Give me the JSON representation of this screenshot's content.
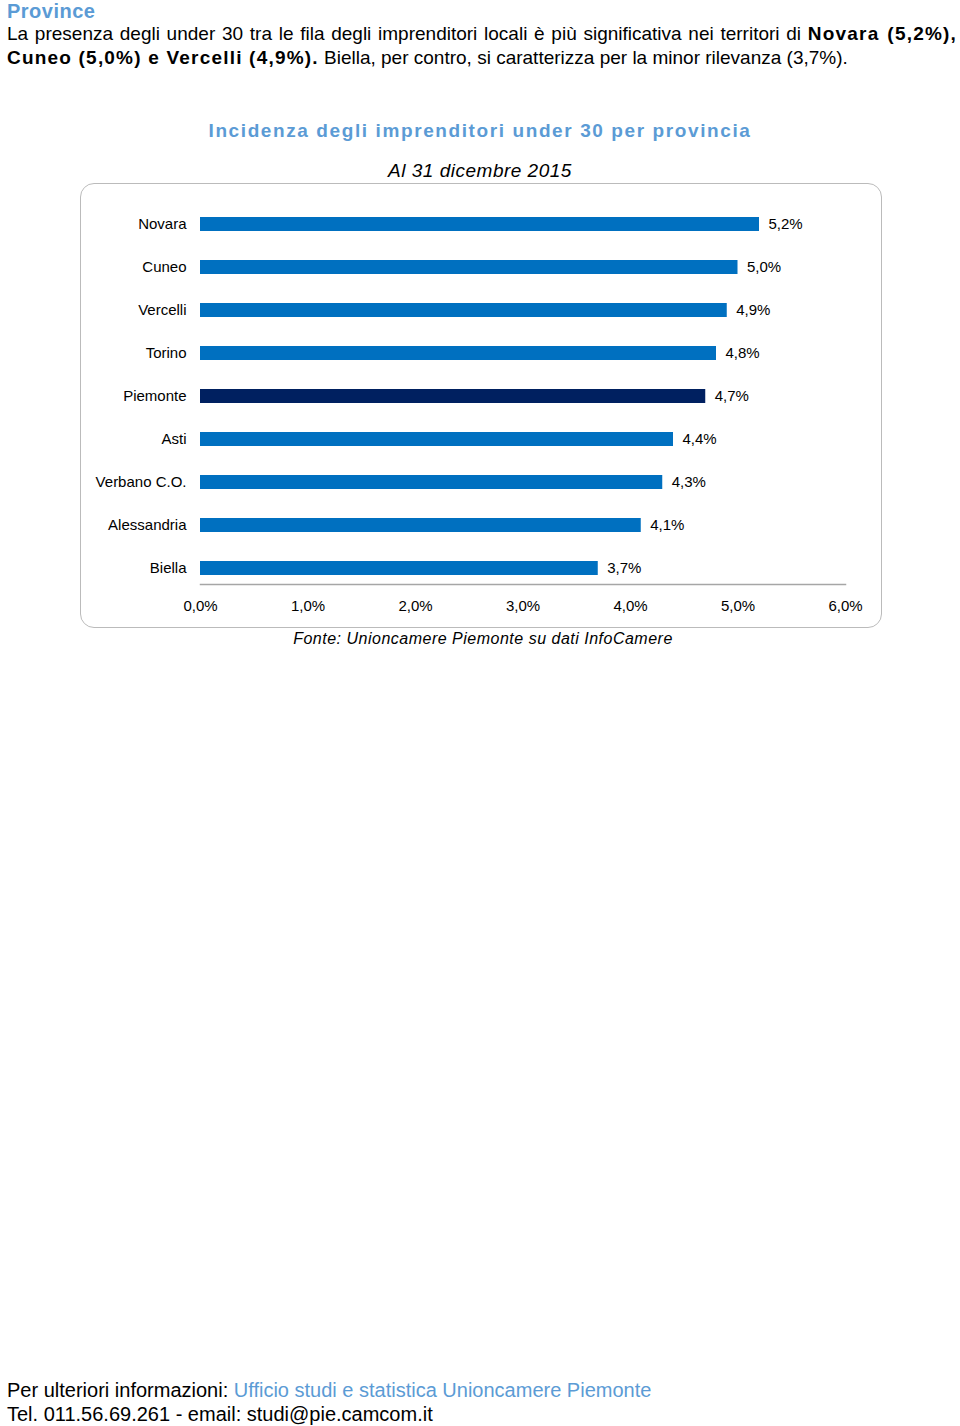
{
  "header": {
    "heading": "Province",
    "paragraph": [
      {
        "text": "La presenza degli under 30 tra le fila degli imprenditori locali è più significativa nei territori di "
      },
      {
        "text": "Novara (5,2%), Cuneo (5,0%) e Vercelli (4,9%).",
        "bold": true
      },
      {
        "text": " Biella, per contro, si caratterizza per la minor rilevanza (3,7%)."
      }
    ]
  },
  "chart_data": {
    "type": "bar",
    "orientation": "horizontal",
    "title": "Incidenza degli imprenditori under 30 per provincia",
    "subtitle": "Al 31 dicembre 2015",
    "source": "Fonte: Unioncamere Piemonte su dati InfoCamere",
    "categories": [
      "Novara",
      "Cuneo",
      "Vercelli",
      "Torino",
      "Piemonte",
      "Asti",
      "Verbano C.O.",
      "Alessandria",
      "Biella"
    ],
    "values": [
      5.2,
      5.0,
      4.9,
      4.8,
      4.7,
      4.4,
      4.3,
      4.1,
      3.7
    ],
    "value_labels": [
      "5,2%",
      "5,0%",
      "4,9%",
      "4,8%",
      "4,7%",
      "4,4%",
      "4,3%",
      "4,1%",
      "3,7%"
    ],
    "colors": [
      "#0070C0",
      "#0070C0",
      "#0070C0",
      "#0070C0",
      "#002060",
      "#0070C0",
      "#0070C0",
      "#0070C0",
      "#0070C0"
    ],
    "data_labels": true,
    "grid": false,
    "xlim": [
      0,
      6
    ],
    "xticks": [
      {
        "value": 0,
        "label": "0,0%"
      },
      {
        "value": 1,
        "label": "1,0%"
      },
      {
        "value": 2,
        "label": "2,0%"
      },
      {
        "value": 3,
        "label": "3,0%"
      },
      {
        "value": 4,
        "label": "4,0%"
      },
      {
        "value": 5,
        "label": "5,0%"
      },
      {
        "value": 6,
        "label": "6,0%"
      }
    ]
  },
  "footer": {
    "lines": [
      [
        {
          "text": "Per ulteriori informazioni: "
        },
        {
          "text": "Ufficio studi e statistica Unioncamere Piemonte",
          "link": true
        }
      ],
      [
        {
          "text": "Tel. 011.56.69.261 - email: studi@pie.camcom.it"
        }
      ]
    ]
  }
}
